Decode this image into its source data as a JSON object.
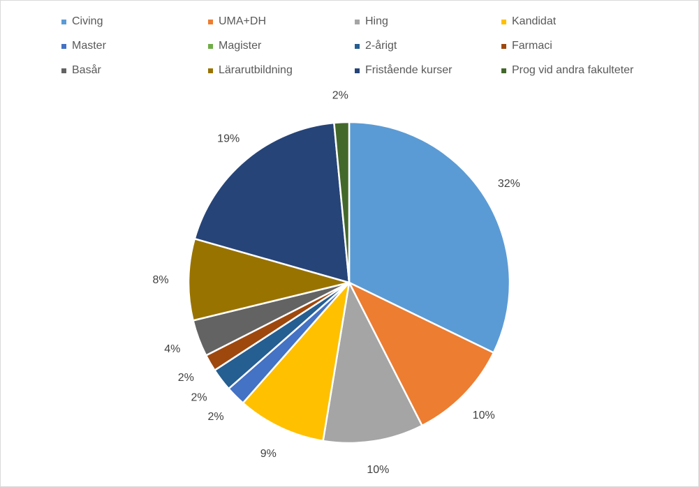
{
  "chart_data": {
    "type": "pie",
    "title": "",
    "legend_placement": "top",
    "categories": [
      "Civing",
      "UMA+DH",
      "Hing",
      "Kandidat",
      "Master",
      "Magister",
      "2-årigt",
      "Farmaci",
      "Basår",
      "Lärarutbildning",
      "Fristående kurser",
      "Prog vid andra fakulteter"
    ],
    "values": [
      32.2,
      10.3,
      10.1,
      8.9,
      2.0,
      0.0,
      2.3,
      1.7,
      3.7,
      8.2,
      19.1,
      1.5
    ],
    "data_labels": [
      "32%",
      "10%",
      "10%",
      "9%",
      "2%",
      "",
      "2%",
      "2%",
      "4%",
      "8%",
      "19%",
      "2%"
    ],
    "colors": [
      "#5b9bd5",
      "#ed7d31",
      "#a5a5a5",
      "#ffc000",
      "#4472c4",
      "#70ad47",
      "#255e91",
      "#9e480e",
      "#636363",
      "#997300",
      "#264478",
      "#43682b"
    ]
  }
}
